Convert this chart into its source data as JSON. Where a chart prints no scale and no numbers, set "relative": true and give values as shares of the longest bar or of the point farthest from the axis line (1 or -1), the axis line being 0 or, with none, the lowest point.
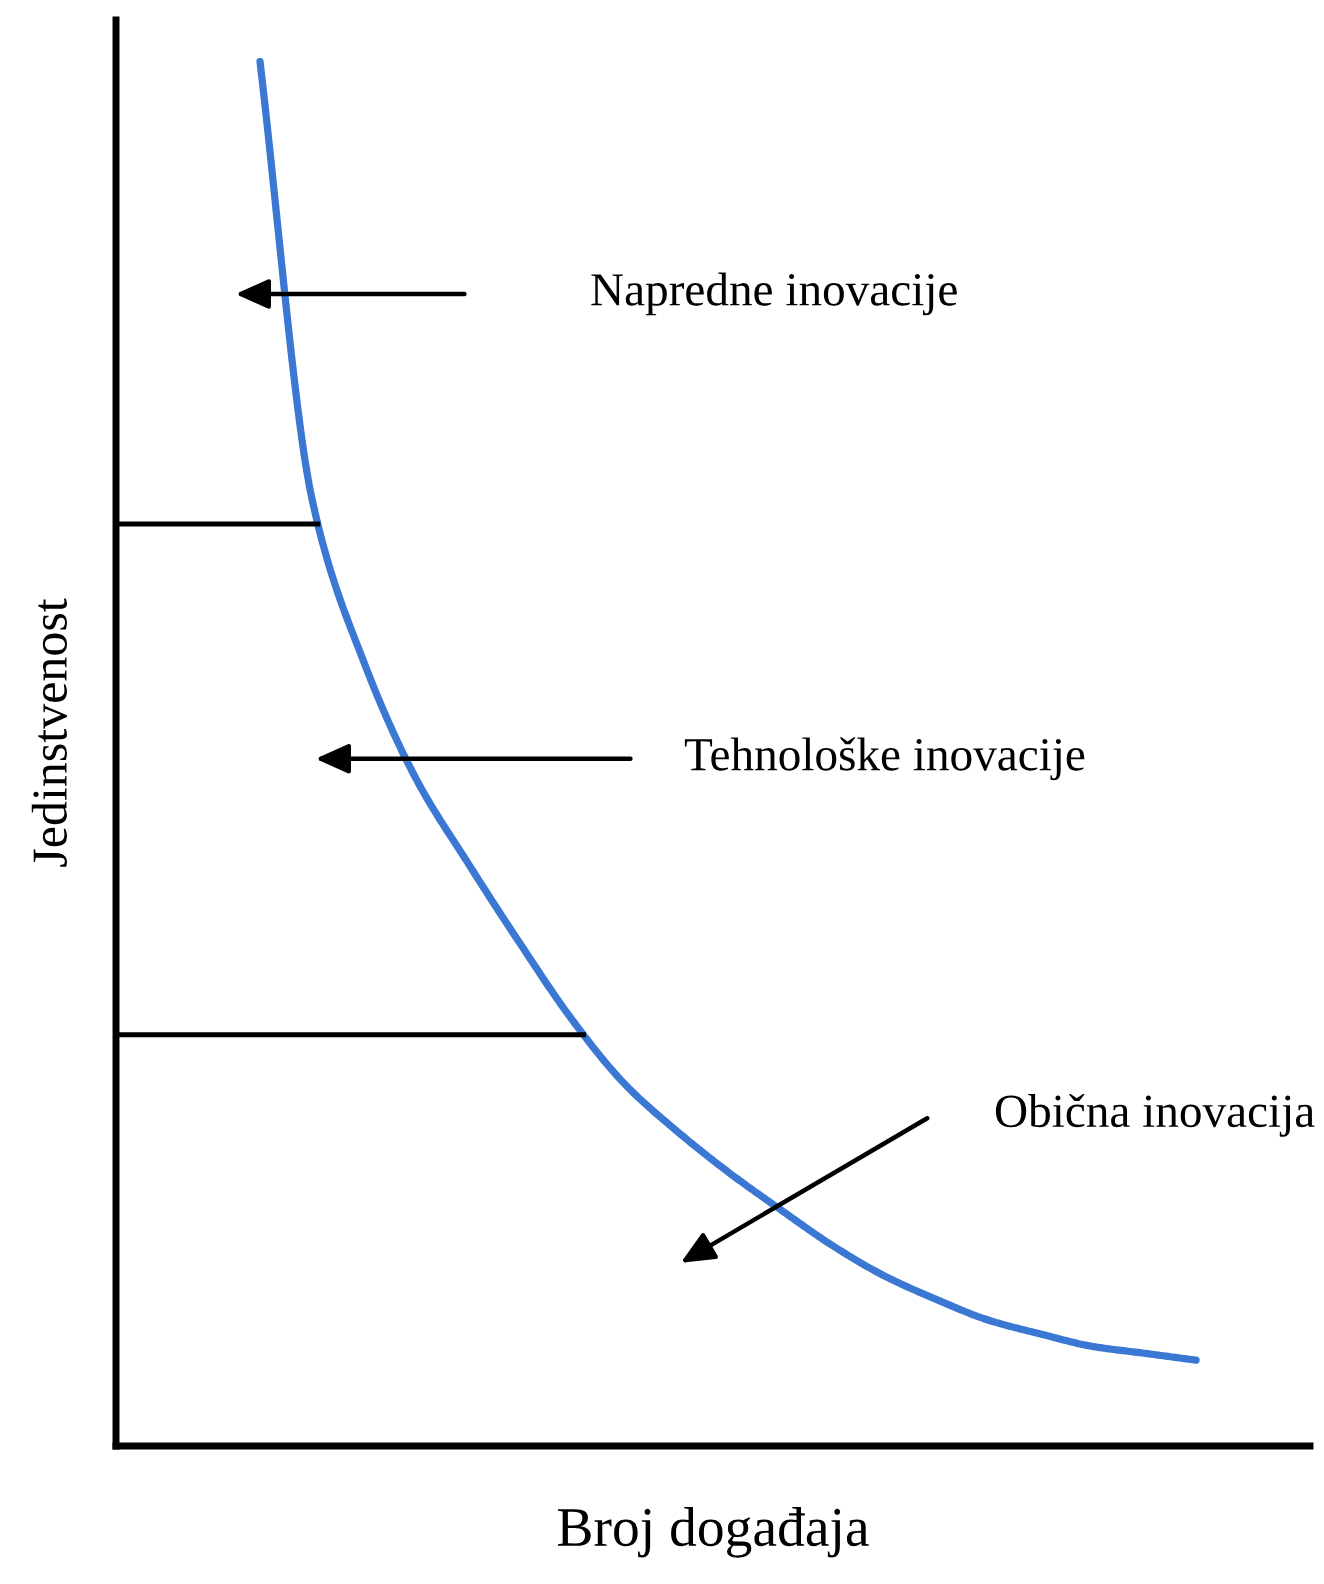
{
  "chart_data": {
    "type": "line",
    "relative": true,
    "xlabel": "Broj događaja",
    "ylabel": "Jedinstvenost",
    "categories": [
      null,
      null,
      null,
      null,
      null,
      null,
      null,
      null,
      null,
      null,
      null,
      null,
      null,
      null,
      null,
      null,
      null,
      null,
      null
    ],
    "series": [
      {
        "color": "#3a78d4",
        "values": [
          1.0,
          0.684,
          0.566,
          0.482,
          0.421,
          0.363,
          0.308,
          0.262,
          0.228,
          0.198,
          0.171,
          0.145,
          0.123,
          0.106,
          0.091,
          0.081,
          0.072,
          0.067,
          0.062
        ]
      }
    ],
    "ref_lines": [
      {
        "axis": "y",
        "value": 0.666,
        "color": "#000000"
      },
      {
        "axis": "y",
        "value": 0.297,
        "color": "#000000"
      }
    ],
    "annotations": [
      "Napredne inovacije",
      "Tehnološke inovacije",
      "Obična inovacija"
    ],
    "legend": false,
    "marker": "none",
    "line_style": "solid"
  }
}
